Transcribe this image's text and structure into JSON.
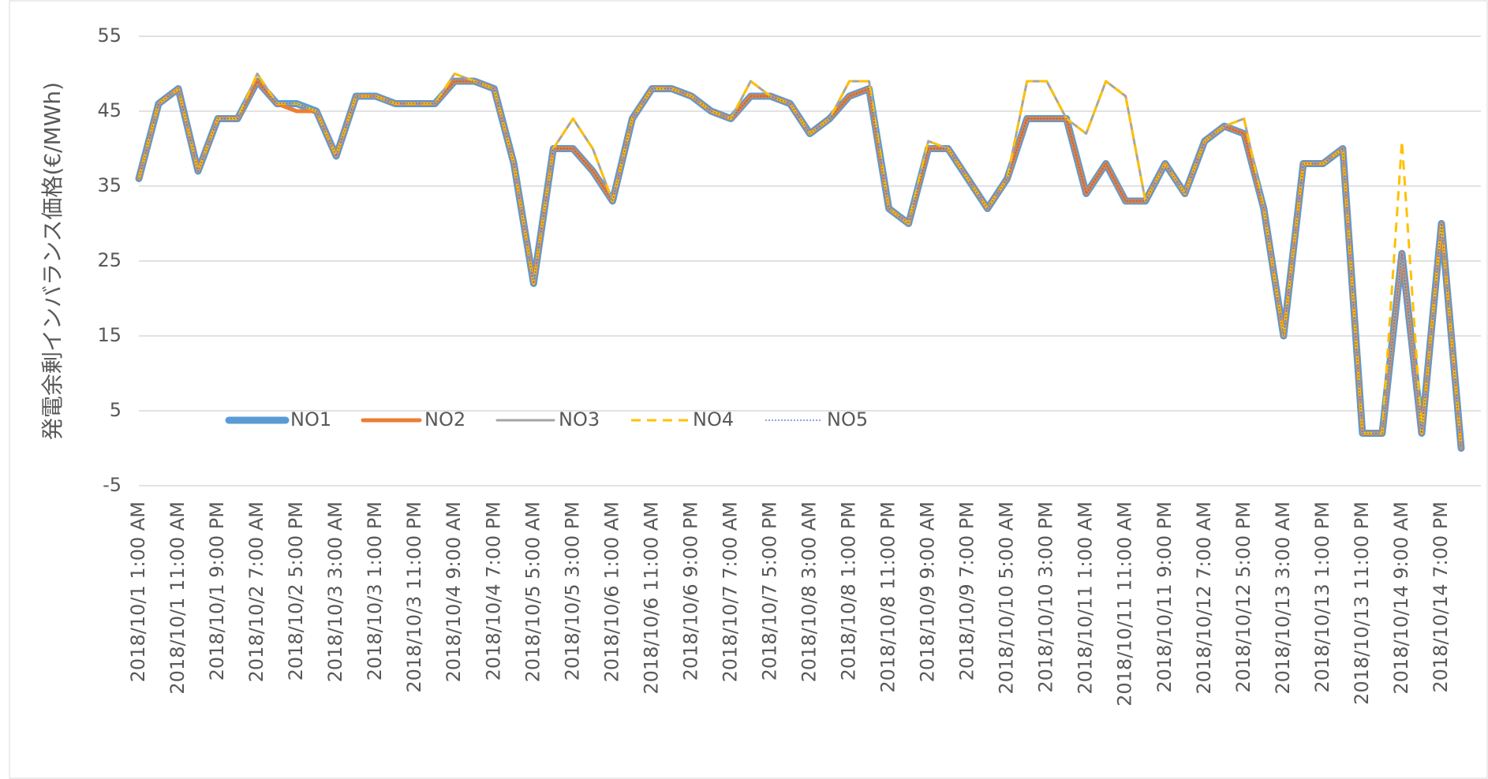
{
  "chart_data": {
    "type": "line",
    "y_label": "発電余剰インバランス価格(€/MWh)",
    "categories": [
      "2018/10/1 1:00 AM",
      null,
      "2018/10/1 11:00 AM",
      null,
      "2018/10/1 9:00 PM",
      null,
      "2018/10/2 7:00 AM",
      null,
      "2018/10/2 5:00 PM",
      null,
      "2018/10/3 3:00 AM",
      null,
      "2018/10/3 1:00 PM",
      null,
      "2018/10/3 11:00 PM",
      null,
      "2018/10/4 9:00 AM",
      null,
      "2018/10/4 7:00 PM",
      null,
      "2018/10/5 5:00 AM",
      null,
      "2018/10/5 3:00 PM",
      null,
      "2018/10/6 1:00 AM",
      null,
      "2018/10/6 11:00 AM",
      null,
      "2018/10/6 9:00 PM",
      null,
      "2018/10/7 7:00 AM",
      null,
      "2018/10/7 5:00 PM",
      null,
      "2018/10/8 3:00 AM",
      null,
      "2018/10/8 1:00 PM",
      null,
      "2018/10/8 11:00 PM",
      null,
      "2018/10/9 9:00 AM",
      null,
      "2018/10/9 7:00 PM",
      null,
      "2018/10/10 5:00 AM",
      null,
      "2018/10/10 3:00 PM",
      null,
      "2018/10/11 1:00 AM",
      null,
      "2018/10/11 11:00 AM",
      null,
      "2018/10/11 9:00 PM",
      null,
      "2018/10/12 7:00 AM",
      null,
      "2018/10/12 5:00 PM",
      null,
      "2018/10/13 3:00 AM",
      null,
      "2018/10/13 1:00 PM",
      null,
      "2018/10/13 11:00 PM",
      null,
      "2018/10/14 9:00 AM",
      null,
      "2018/10/14 7:00 PM",
      null
    ],
    "series": [
      {
        "name": "NO1",
        "color": "#5b9bd5",
        "values": [
          36,
          46,
          48,
          37,
          44,
          44,
          49,
          46,
          46,
          45,
          39,
          47,
          47,
          46,
          46,
          46,
          49,
          49,
          48,
          38,
          22,
          40,
          40,
          37,
          33,
          44,
          48,
          48,
          47,
          45,
          44,
          47,
          47,
          46,
          42,
          44,
          47,
          48,
          32,
          30,
          40,
          40,
          36,
          32,
          36,
          44,
          44,
          44,
          34,
          38,
          33,
          33,
          38,
          34,
          41,
          43,
          42,
          32,
          15,
          38,
          38,
          40,
          2,
          2,
          26,
          2,
          30,
          0
        ]
      },
      {
        "name": "NO2",
        "color": "#ed7d31",
        "values": [
          36,
          46,
          48,
          37,
          44,
          44,
          49,
          46,
          45,
          45,
          39,
          47,
          47,
          46,
          46,
          46,
          49,
          49,
          48,
          38,
          22,
          40,
          40,
          37,
          33,
          44,
          48,
          48,
          47,
          45,
          44,
          47,
          47,
          46,
          42,
          44,
          47,
          48,
          32,
          30,
          40,
          40,
          36,
          32,
          36,
          44,
          44,
          44,
          34,
          38,
          33,
          33,
          38,
          34,
          41,
          43,
          42,
          32,
          15,
          38,
          38,
          40,
          2,
          2,
          26,
          2,
          30,
          0
        ]
      },
      {
        "name": "NO3",
        "color": "#a5a5a5",
        "values": [
          36,
          46,
          48,
          37,
          44,
          44,
          50,
          46,
          46,
          45,
          39,
          47,
          47,
          46,
          46,
          46,
          50,
          49,
          48,
          38,
          22,
          40,
          44,
          40,
          33,
          44,
          48,
          48,
          47,
          45,
          44,
          49,
          47,
          46,
          42,
          44,
          49,
          49,
          32,
          30,
          41,
          40,
          36,
          32,
          36,
          49,
          49,
          44,
          42,
          49,
          47,
          33,
          38,
          34,
          41,
          43,
          44,
          32,
          15,
          38,
          38,
          40,
          2,
          2,
          26,
          2,
          30,
          0
        ]
      },
      {
        "name": "NO4",
        "color": "#ffc000",
        "values": [
          36,
          46,
          48,
          37,
          44,
          44,
          50,
          46,
          46,
          45,
          39,
          47,
          47,
          46,
          46,
          46,
          50,
          49,
          48,
          38,
          22,
          40,
          44,
          40,
          33,
          44,
          48,
          48,
          47,
          45,
          44,
          49,
          47,
          46,
          42,
          44,
          49,
          49,
          32,
          30,
          41,
          40,
          36,
          32,
          36,
          49,
          49,
          44,
          42,
          49,
          47,
          33,
          38,
          34,
          41,
          43,
          44,
          32,
          15,
          38,
          38,
          40,
          2,
          2,
          41,
          2,
          30,
          0
        ]
      },
      {
        "name": "NO5",
        "color": "#4472c4",
        "values": [
          36,
          46,
          48,
          37,
          44,
          44,
          49,
          46,
          46,
          45,
          39,
          47,
          47,
          46,
          46,
          46,
          49,
          49,
          48,
          38,
          22,
          40,
          40,
          37,
          33,
          44,
          48,
          48,
          47,
          45,
          44,
          47,
          47,
          46,
          42,
          44,
          47,
          48,
          32,
          30,
          40,
          40,
          36,
          32,
          36,
          44,
          44,
          44,
          34,
          38,
          33,
          33,
          38,
          34,
          41,
          43,
          42,
          32,
          15,
          38,
          38,
          40,
          2,
          2,
          26,
          2,
          30,
          0
        ]
      }
    ],
    "ylim": [
      -5,
      55
    ],
    "yticks": [
      -5,
      5,
      15,
      25,
      35,
      45,
      55
    ],
    "grid": true,
    "legend": "bottom-left"
  }
}
